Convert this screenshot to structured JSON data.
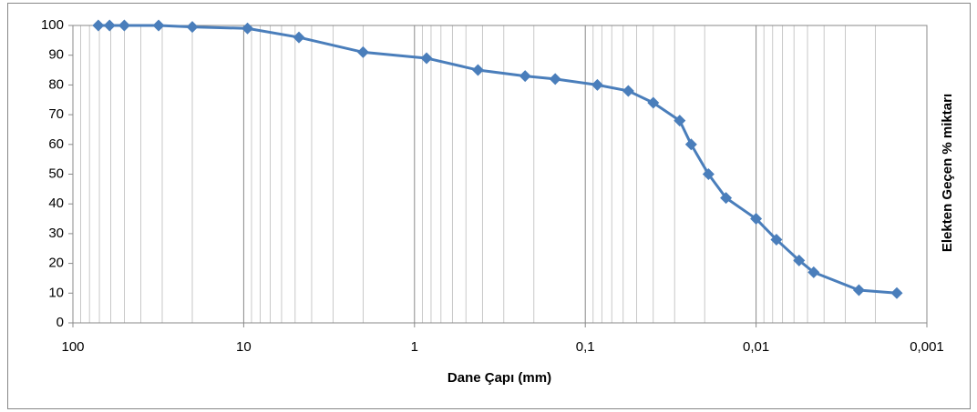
{
  "chart_data": {
    "type": "line",
    "x_label": "Dane Çapı (mm)",
    "y_label": "Elekten Geçen % miktarı",
    "x": [
      71,
      61,
      50,
      31.5,
      20,
      9.5,
      4.75,
      2,
      0.85,
      0.425,
      0.225,
      0.15,
      0.085,
      0.056,
      0.04,
      0.028,
      0.024,
      0.019,
      0.015,
      0.01,
      0.0076,
      0.0056,
      0.0046,
      0.0025,
      0.0015
    ],
    "series": [
      {
        "name": "Elekten Geçen % miktarı",
        "color": "#4a7ebb",
        "values": [
          100,
          100,
          100,
          100,
          99.5,
          99,
          96,
          91,
          89,
          85,
          83,
          82,
          80,
          78,
          74,
          68,
          60,
          50,
          42,
          35,
          28,
          21,
          17,
          11,
          10
        ]
      }
    ],
    "xlim": [
      100,
      0.001
    ],
    "xticks": [
      100,
      10,
      1,
      {
        "value": 0.1,
        "label": "0,1"
      },
      {
        "value": 0.01,
        "label": "0,01"
      },
      {
        "value": 0.001,
        "label": "0,001"
      }
    ],
    "ylim": [
      0,
      100
    ],
    "yticks": [
      0,
      10,
      20,
      30,
      40,
      50,
      60,
      70,
      80,
      90,
      100
    ],
    "x_log": true,
    "grid": true,
    "minor_grid": true
  }
}
